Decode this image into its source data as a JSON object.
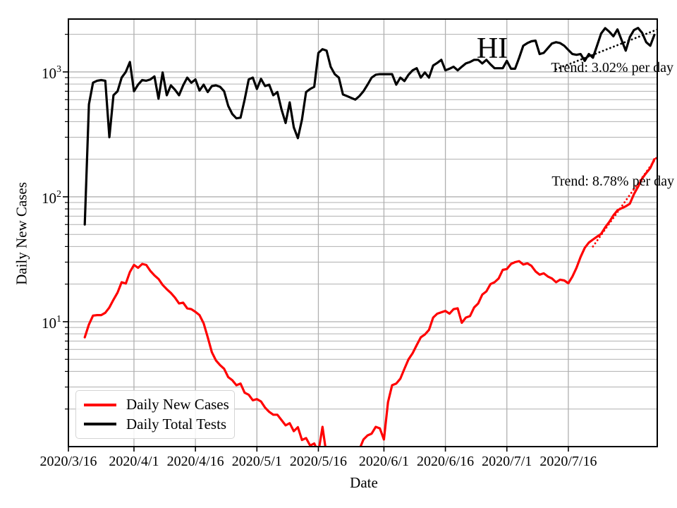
{
  "chart_data": {
    "type": "line",
    "title": "HI",
    "xlabel": "Date",
    "ylabel": "Daily New Cases",
    "grid": "on",
    "legend_position": "lower-left",
    "colors": {
      "cases": "#ff0000",
      "tests": "#000000",
      "grid": "#b0b0b0",
      "axes": "#000000"
    },
    "x_axis": {
      "label": "Date",
      "start_date": "2020/3/16",
      "span_days": 143.7,
      "ticks": [
        {
          "label": "2020/3/16",
          "day": 0
        },
        {
          "label": "2020/4/1",
          "day": 16
        },
        {
          "label": "2020/4/16",
          "day": 31
        },
        {
          "label": "2020/5/1",
          "day": 46
        },
        {
          "label": "2020/5/16",
          "day": 61
        },
        {
          "label": "2020/6/1",
          "day": 77
        },
        {
          "label": "2020/6/16",
          "day": 92
        },
        {
          "label": "2020/7/1",
          "day": 107
        },
        {
          "label": "2020/7/16",
          "day": 122
        }
      ]
    },
    "y_axis": {
      "label": "Daily New Cases",
      "scale": "log",
      "ylim": [
        1,
        2650
      ],
      "ticks": [
        {
          "mantissa": "10",
          "exponent": "1",
          "value": 10
        },
        {
          "mantissa": "10",
          "exponent": "2",
          "value": 100
        },
        {
          "mantissa": "10",
          "exponent": "3",
          "value": 1000
        }
      ]
    },
    "series": [
      {
        "name": "Daily New Cases",
        "color": "#ff0000",
        "start_date": "2020/3/20",
        "start_day_offset": 4,
        "cadence": "daily",
        "values": [
          7.5,
          9.5,
          11.2,
          11.3,
          11.3,
          11.8,
          13,
          15,
          17.1,
          20.7,
          20.2,
          25,
          28.5,
          27,
          29,
          28.5,
          25.5,
          23.5,
          22,
          19.7,
          18.2,
          17,
          15.6,
          14,
          14.2,
          12.8,
          12.6,
          12,
          11.3,
          9.7,
          7.5,
          5.7,
          4.9,
          4.5,
          4.2,
          3.6,
          3.4,
          3.1,
          3.2,
          2.7,
          2.6,
          2.35,
          2.4,
          2.3,
          2.05,
          1.9,
          1.8,
          1.8,
          1.63,
          1.48,
          1.54,
          1.33,
          1.43,
          1.13,
          1.17,
          1.02,
          1.06,
          0.9,
          1.44,
          0.85,
          0.8,
          0.8,
          0.8,
          0.8,
          0.8,
          0.8,
          0.85,
          0.95,
          1.14,
          1.23,
          1.27,
          1.44,
          1.4,
          1.14,
          2.27,
          3.1,
          3.2,
          3.5,
          4.2,
          5.0,
          5.6,
          6.5,
          7.5,
          7.9,
          8.6,
          10.8,
          11.6,
          11.9,
          12.2,
          11.6,
          12.6,
          12.8,
          9.8,
          10.8,
          11.1,
          13,
          14,
          16.5,
          17.5,
          20,
          20.7,
          22.2,
          26,
          26.4,
          29,
          30,
          30.5,
          28.7,
          29.3,
          28,
          25.3,
          23.8,
          24.4,
          23,
          22.2,
          20.7,
          21.7,
          21.4,
          20.3,
          23,
          27,
          33,
          39,
          43,
          45.5,
          48,
          50.5,
          57,
          63,
          71,
          78,
          81,
          84,
          88,
          105,
          120,
          140,
          155,
          170,
          200
        ]
      },
      {
        "name": "Daily Total Tests",
        "color": "#000000",
        "start_date": "2020/3/20",
        "start_day_offset": 4,
        "cadence": "daily",
        "values": [
          60,
          550,
          820,
          850,
          860,
          850,
          300,
          650,
          700,
          900,
          1000,
          1200,
          700,
          790,
          860,
          850,
          870,
          920,
          610,
          990,
          650,
          780,
          720,
          650,
          780,
          900,
          820,
          870,
          710,
          790,
          690,
          770,
          780,
          760,
          700,
          535,
          460,
          425,
          430,
          600,
          870,
          900,
          730,
          880,
          770,
          790,
          650,
          690,
          500,
          390,
          570,
          360,
          295,
          415,
          690,
          730,
          760,
          1420,
          1520,
          1480,
          1100,
          960,
          900,
          660,
          640,
          620,
          600,
          640,
          700,
          790,
          900,
          950,
          960,
          960,
          960,
          960,
          790,
          900,
          845,
          950,
          1030,
          1070,
          900,
          990,
          900,
          1125,
          1180,
          1250,
          1030,
          1060,
          1100,
          1030,
          1100,
          1170,
          1200,
          1250,
          1250,
          1170,
          1250,
          1150,
          1070,
          1070,
          1070,
          1225,
          1060,
          1060,
          1300,
          1620,
          1700,
          1760,
          1780,
          1390,
          1420,
          1550,
          1690,
          1730,
          1700,
          1620,
          1500,
          1390,
          1370,
          1390,
          1225,
          1390,
          1300,
          1620,
          2030,
          2240,
          2100,
          1930,
          2190,
          1800,
          1480,
          1900,
          2160,
          2250,
          2060,
          1730,
          1620,
          1980
        ]
      }
    ],
    "trend_lines": [
      {
        "for_series": "Daily Total Tests",
        "rate_label": "Trend: 3.02% per day",
        "rate_percent_per_day": 3.02,
        "start_day": 119,
        "start_value": 1050,
        "end_day": 143.7,
        "end_value": 2185,
        "style": "dotted",
        "color": "#000000"
      },
      {
        "for_series": "Daily New Cases",
        "rate_label": "Trend: 8.78% per day",
        "rate_percent_per_day": 8.78,
        "start_day": 128,
        "start_value": 40,
        "end_day": 143.7,
        "end_value": 210,
        "style": "dotted",
        "color": "#ff0000"
      }
    ],
    "annotations": [
      {
        "id": "trend-tests",
        "text": "Trend: 3.02% per day"
      },
      {
        "id": "trend-cases",
        "text": "Trend: 8.78% per day"
      }
    ],
    "legend": {
      "items": [
        {
          "label": "Daily New Cases",
          "color": "#ff0000"
        },
        {
          "label": "Daily Total Tests",
          "color": "#000000"
        }
      ]
    }
  }
}
